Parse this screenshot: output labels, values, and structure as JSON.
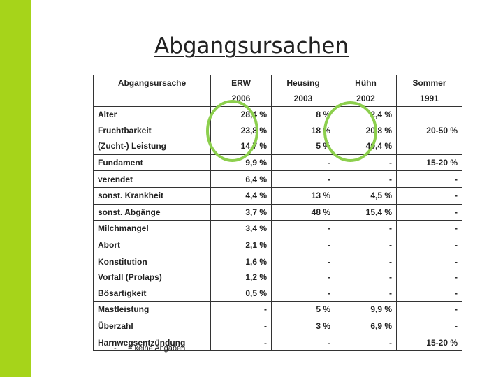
{
  "title": "Abgangsursachen",
  "colors": {
    "side_bar": "#a6d41a",
    "circle": "#8ccf4d"
  },
  "table": {
    "header_row1": [
      "Abgangsursache",
      "ERW",
      "Heusing",
      "Hühn",
      "Sommer"
    ],
    "header_row2": [
      "",
      "2006",
      "2003",
      "2002",
      "1991"
    ],
    "rows": [
      [
        "Alter",
        "28,4 %",
        "8 %",
        "2,4 %",
        ""
      ],
      [
        "Fruchtbarkeit",
        "23,8 %",
        "18 %",
        "20,8 %",
        "20-50 %"
      ],
      [
        "(Zucht-) Leistung",
        "14,7 %",
        "5 %",
        "40,4 %",
        ""
      ],
      [
        "Fundament",
        "9,9 %",
        "-",
        "-",
        "15-20 %"
      ],
      [
        "verendet",
        "6,4 %",
        "-",
        "-",
        "-"
      ],
      [
        "sonst. Krankheit",
        "4,4 %",
        "13 %",
        "4,5 %",
        "-"
      ],
      [
        "sonst. Abgänge",
        "3,7 %",
        "48 %",
        "15,4 %",
        "-"
      ],
      [
        "Milchmangel",
        "3,4 %",
        "-",
        "-",
        "-"
      ],
      [
        "Abort",
        "2,1 %",
        "-",
        "-",
        "-"
      ],
      [
        "Konstitution",
        "1,6 %",
        "-",
        "-",
        "-"
      ],
      [
        "Vorfall (Prolaps)",
        "1,2 %",
        "-",
        "-",
        "-"
      ],
      [
        "Bösartigkeit",
        "0,5 %",
        "-",
        "-",
        "-"
      ],
      [
        "Mastleistung",
        "-",
        "5 %",
        "9,9 %",
        "-"
      ],
      [
        "Überzahl",
        "-",
        "3 %",
        "6,9 %",
        "-"
      ],
      [
        "Harnwegsentzündung",
        "-",
        "-",
        "-",
        "15-20 %"
      ]
    ],
    "separator_before_rows": [
      3,
      4,
      5,
      6,
      7,
      8,
      9,
      12,
      13,
      14
    ]
  },
  "footnote": {
    "dash": "-",
    "text": "= keine Angaben"
  }
}
